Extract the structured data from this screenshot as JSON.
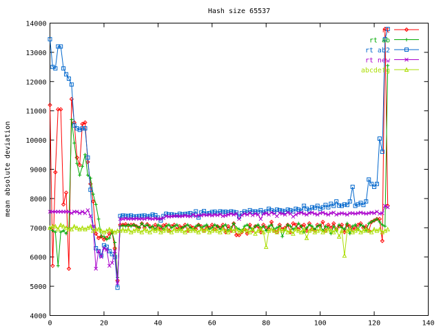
{
  "chart_data": {
    "type": "line",
    "title": "Hash size 65537",
    "xlabel": "",
    "ylabel": "mean absolute deviation",
    "xlim": [
      0,
      140
    ],
    "ylim": [
      4000,
      14000
    ],
    "xticks": [
      0,
      20,
      40,
      60,
      80,
      100,
      120,
      140
    ],
    "yticks": [
      4000,
      5000,
      6000,
      7000,
      8000,
      9000,
      10000,
      11000,
      12000,
      13000,
      14000
    ],
    "grid": false,
    "legend_position": "top-right",
    "x": [
      0,
      1,
      2,
      3,
      4,
      5,
      6,
      7,
      8,
      9,
      10,
      11,
      12,
      13,
      14,
      15,
      16,
      17,
      18,
      19,
      20,
      21,
      22,
      23,
      24,
      25,
      26,
      27,
      28,
      29,
      30,
      31,
      32,
      33,
      34,
      35,
      36,
      37,
      38,
      39,
      40,
      41,
      42,
      43,
      44,
      45,
      46,
      47,
      48,
      49,
      50,
      51,
      52,
      53,
      54,
      55,
      56,
      57,
      58,
      59,
      60,
      61,
      62,
      63,
      64,
      65,
      66,
      67,
      68,
      69,
      70,
      71,
      72,
      73,
      74,
      75,
      76,
      77,
      78,
      79,
      80,
      81,
      82,
      83,
      84,
      85,
      86,
      87,
      88,
      89,
      90,
      91,
      92,
      93,
      94,
      95,
      96,
      97,
      98,
      99,
      100,
      101,
      102,
      103,
      104,
      105,
      106,
      107,
      108,
      109,
      110,
      111,
      112,
      113,
      114,
      115,
      116,
      117,
      118,
      119,
      120,
      121,
      122,
      123,
      124,
      125
    ],
    "series": [
      {
        "name": "rt",
        "color": "#ff0000",
        "marker": "diamond",
        "values": [
          11200,
          5700,
          8900,
          11050,
          11050,
          7800,
          8200,
          5600,
          11400,
          10600,
          9400,
          9150,
          10550,
          10600,
          9250,
          8500,
          7900,
          6800,
          6650,
          6700,
          6600,
          6650,
          6800,
          6850,
          6300,
          5200,
          7100,
          7100,
          7120,
          7080,
          7100,
          7100,
          7050,
          7000,
          7150,
          7000,
          7120,
          7050,
          7000,
          7100,
          7000,
          6950,
          7080,
          7100,
          6900,
          7050,
          7100,
          6950,
          7050,
          7000,
          7100,
          6900,
          7050,
          7000,
          6950,
          7100,
          7050,
          6900,
          7050,
          7000,
          7100,
          6950,
          7050,
          7000,
          7100,
          6850,
          7050,
          6900,
          7150,
          6750,
          6750,
          6850,
          6950,
          6800,
          7100,
          6900,
          7050,
          7050,
          6850,
          7100,
          7000,
          6950,
          7200,
          6900,
          6850,
          7100,
          6950,
          7000,
          7100,
          6850,
          7150,
          7100,
          6950,
          7050,
          7100,
          6900,
          7150,
          6950,
          6900,
          7100,
          7050,
          7200,
          6900,
          7100,
          7000,
          7150,
          6950,
          7050,
          7100,
          6850,
          7100,
          7050,
          6950,
          7000,
          7100,
          7150,
          7000,
          7050,
          6900,
          7200,
          7250,
          7300,
          7300,
          6550,
          13800,
          7750
        ]
      },
      {
        "name": "rt ab",
        "color": "#00aa00",
        "marker": "plus",
        "values": [
          7000,
          6900,
          6850,
          5700,
          6850,
          6900,
          6800,
          7000,
          10700,
          9900,
          9200,
          8800,
          9100,
          9500,
          8800,
          8700,
          8150,
          7800,
          7300,
          6700,
          6700,
          6600,
          6650,
          6850,
          6500,
          5300,
          7050,
          7080,
          7050,
          7100,
          7050,
          7100,
          7050,
          7000,
          7150,
          7050,
          7100,
          7000,
          7050,
          6950,
          7100,
          7050,
          6950,
          7050,
          7100,
          7000,
          7050,
          7100,
          6950,
          7000,
          7050,
          7100,
          7000,
          6950,
          7050,
          7100,
          7000,
          7050,
          7100,
          6950,
          7000,
          7100,
          7050,
          6950,
          7050,
          7100,
          6900,
          7000,
          7150,
          7000,
          6950,
          6900,
          7050,
          7100,
          7000,
          6950,
          7050,
          7100,
          7000,
          7050,
          6900,
          7050,
          7100,
          6950,
          7000,
          7050,
          6700,
          6950,
          7100,
          7050,
          6950,
          7000,
          7150,
          7050,
          6850,
          7000,
          7100,
          7050,
          6950,
          7050,
          7100,
          6900,
          7050,
          7000,
          6800,
          7050,
          6900,
          7100,
          7000,
          6950,
          7150,
          6800,
          7050,
          7100,
          6950,
          7100,
          7050,
          6900,
          7150,
          7200,
          7250,
          7300,
          7200,
          7100,
          7050,
          12550
        ]
      },
      {
        "name": "rt ab2",
        "color": "#0066cc",
        "marker": "square",
        "values": [
          13450,
          12500,
          12450,
          13200,
          13200,
          12450,
          12250,
          12100,
          11900,
          10500,
          10400,
          10350,
          10400,
          10400,
          9400,
          8300,
          7000,
          6300,
          6200,
          6050,
          6400,
          6350,
          6200,
          6100,
          6000,
          4950,
          7400,
          7420,
          7410,
          7400,
          7420,
          7380,
          7390,
          7400,
          7410,
          7420,
          7380,
          7400,
          7450,
          7430,
          7350,
          7250,
          7400,
          7480,
          7450,
          7460,
          7440,
          7430,
          7480,
          7450,
          7470,
          7480,
          7500,
          7450,
          7560,
          7350,
          7520,
          7570,
          7480,
          7500,
          7540,
          7550,
          7500,
          7560,
          7540,
          7550,
          7520,
          7560,
          7540,
          7520,
          7380,
          7500,
          7560,
          7520,
          7600,
          7550,
          7560,
          7540,
          7600,
          7520,
          7560,
          7650,
          7600,
          7550,
          7620,
          7600,
          7580,
          7550,
          7620,
          7600,
          7560,
          7650,
          7620,
          7580,
          7750,
          7650,
          7600,
          7700,
          7680,
          7750,
          7650,
          7700,
          7780,
          7700,
          7820,
          7750,
          7900,
          7760,
          7750,
          7800,
          7780,
          7900,
          8400,
          7750,
          7800,
          7850,
          7780,
          7900,
          8650,
          8500,
          8400,
          8500,
          10050,
          9600,
          13450,
          13800
        ]
      },
      {
        "name": "rt new",
        "color": "#aa00cc",
        "marker": "cross",
        "values": [
          7550,
          7550,
          7550,
          7550,
          7550,
          7550,
          7550,
          7550,
          7500,
          7550,
          7550,
          7500,
          7550,
          7500,
          7600,
          7400,
          7050,
          5600,
          6200,
          6000,
          6300,
          6250,
          5700,
          5800,
          6200,
          5100,
          7300,
          7300,
          7320,
          7300,
          7310,
          7300,
          7320,
          7300,
          7310,
          7300,
          7330,
          7310,
          7300,
          7320,
          7300,
          7310,
          7330,
          7400,
          7380,
          7390,
          7400,
          7410,
          7390,
          7400,
          7420,
          7400,
          7390,
          7450,
          7400,
          7430,
          7420,
          7450,
          7430,
          7450,
          7420,
          7450,
          7430,
          7460,
          7400,
          7420,
          7450,
          7480,
          7450,
          7480,
          7300,
          7430,
          7480,
          7450,
          7500,
          7430,
          7480,
          7450,
          7300,
          7480,
          7500,
          7450,
          7520,
          7480,
          7400,
          7500,
          7480,
          7450,
          7520,
          7480,
          7380,
          7450,
          7500,
          7520,
          7480,
          7450,
          7500,
          7520,
          7480,
          7450,
          7500,
          7520,
          7480,
          7450,
          7500,
          7520,
          7450,
          7480,
          7500,
          7480,
          7450,
          7500,
          7500,
          7480,
          7500,
          7520,
          7500,
          7480,
          7500,
          7520,
          7500,
          7550,
          7480,
          7500,
          7750,
          7700
        ]
      },
      {
        "name": "abcdefg",
        "color": "#aadd00",
        "marker": "triangle",
        "values": [
          7000,
          7050,
          7050,
          6950,
          7100,
          7050,
          7000,
          6950,
          6950,
          7050,
          7000,
          6950,
          7000,
          6950,
          7000,
          7050,
          6900,
          6950,
          6950,
          6900,
          6850,
          6900,
          6950,
          6900,
          6850,
          6900,
          6900,
          6950,
          6900,
          6950,
          6850,
          6900,
          6950,
          6900,
          6850,
          6950,
          6900,
          6850,
          6950,
          6900,
          6950,
          6850,
          6900,
          6950,
          6900,
          6850,
          6950,
          6900,
          6950,
          6900,
          6850,
          6950,
          6900,
          6950,
          6900,
          6850,
          6950,
          6900,
          6950,
          6850,
          6900,
          6950,
          6900,
          6850,
          6950,
          6900,
          6850,
          6950,
          6900,
          6950,
          6850,
          6900,
          6950,
          6900,
          6850,
          6950,
          6800,
          6900,
          6950,
          6850,
          6350,
          6900,
          6950,
          6900,
          6850,
          6950,
          6900,
          6950,
          6850,
          6900,
          6800,
          6950,
          6900,
          6850,
          6950,
          6650,
          6900,
          6950,
          6850,
          6900,
          6950,
          6850,
          6900,
          6950,
          6900,
          6850,
          6950,
          6700,
          6900,
          6050,
          6900,
          6950,
          6850,
          6900,
          6950,
          6850,
          6900,
          6950,
          6900,
          6850,
          6950,
          6900,
          6950,
          6850,
          6900,
          6950
        ]
      }
    ]
  }
}
